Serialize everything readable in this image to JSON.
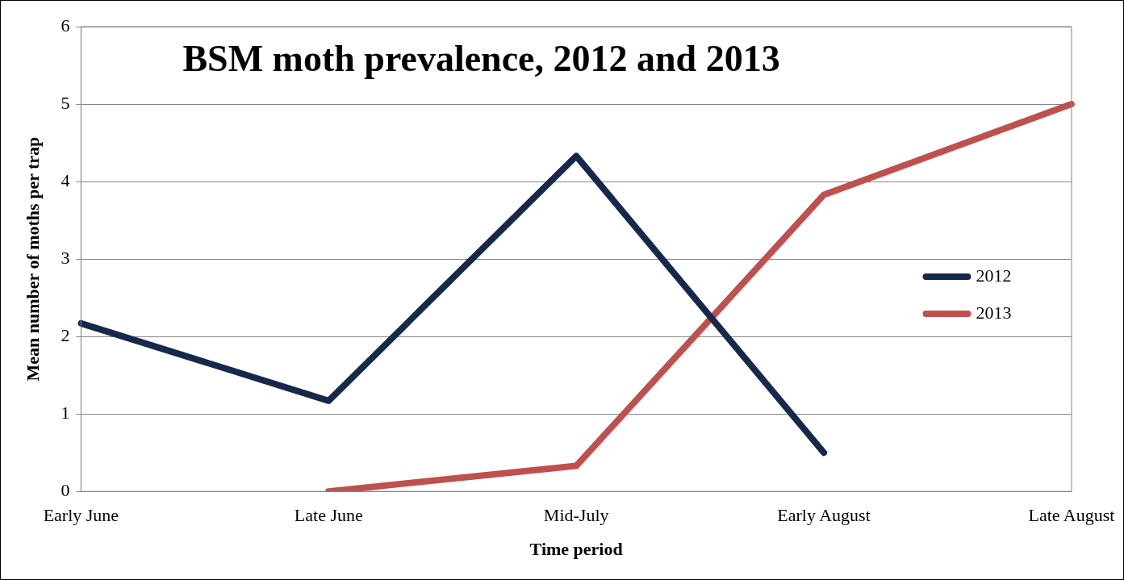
{
  "chart_data": {
    "type": "line",
    "title": "BSM moth prevalence, 2012 and 2013",
    "xlabel": "Time period",
    "ylabel": "Mean number of moths per trap",
    "categories": [
      "Early June",
      "Late June",
      "Mid-July",
      "Early August",
      "Late August"
    ],
    "series": [
      {
        "name": "2012",
        "color": "#17294a",
        "values": [
          2.17,
          1.17,
          4.33,
          0.5,
          null
        ]
      },
      {
        "name": "2013",
        "color": "#c0504d",
        "values": [
          null,
          0,
          0.33,
          3.83,
          5
        ]
      }
    ],
    "ylim": [
      0,
      6
    ],
    "yticks": [
      0,
      1,
      2,
      3,
      4,
      5,
      6
    ],
    "grid": "y",
    "legend": "right",
    "marker": "none",
    "line_style": "solid"
  }
}
